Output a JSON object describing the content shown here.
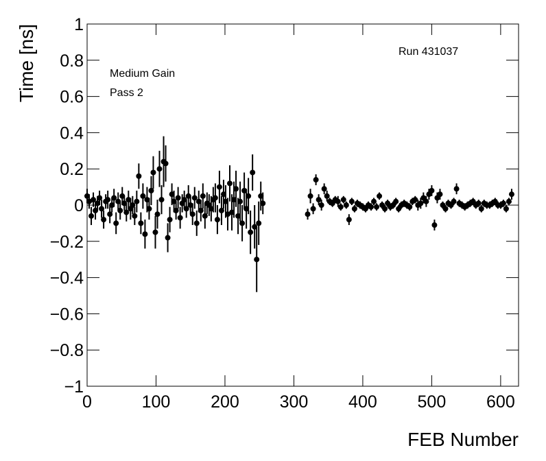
{
  "chart_data": {
    "type": "scatter",
    "x_label": "FEB Number",
    "y_label": "Time [ns]",
    "annotations": [
      "Run 431037",
      "Medium Gain",
      "Pass 2"
    ],
    "xlim": [
      0,
      626
    ],
    "ylim": [
      -1,
      1
    ],
    "xticks": [
      0,
      100,
      200,
      300,
      400,
      500,
      600
    ],
    "yticks": [
      {
        "value": -1,
        "label": "−1"
      },
      {
        "value": -0.8,
        "label": "−0.8"
      },
      {
        "value": -0.6,
        "label": "−0.6"
      },
      {
        "value": -0.4,
        "label": "−0.4"
      },
      {
        "value": -0.2,
        "label": "−0.2"
      },
      0,
      0.2,
      0.4,
      0.6,
      0.8,
      1
    ],
    "series": [
      {
        "color": "#000000",
        "x": [
          0,
          3,
          6,
          9,
          12,
          15,
          18,
          21,
          24,
          27,
          30,
          33,
          36,
          39,
          42,
          45,
          48,
          51,
          54,
          57,
          60,
          63,
          66,
          69,
          72,
          75,
          78,
          81,
          84,
          87,
          90,
          93,
          96,
          99,
          102,
          105,
          108,
          111,
          114,
          117,
          120,
          123,
          126,
          129,
          132,
          135,
          138,
          141,
          144,
          147,
          150,
          153,
          156,
          159,
          162,
          165,
          168,
          171,
          174,
          177,
          180,
          183,
          186,
          189,
          192,
          195,
          198,
          201,
          204,
          207,
          210,
          213,
          216,
          219,
          222,
          225,
          228,
          231,
          234,
          237,
          240,
          243,
          246,
          249,
          252,
          255
        ],
        "values": [
          0.05,
          0.02,
          -0.06,
          0.03,
          -0.03,
          0.01,
          0.04,
          -0.02,
          -0.08,
          0.02,
          0.03,
          -0.05,
          0.0,
          0.04,
          -0.1,
          0.02,
          -0.03,
          0.05,
          0.01,
          -0.04,
          0.03,
          -0.02,
          0.0,
          -0.06,
          0.02,
          0.16,
          -0.1,
          0.05,
          -0.16,
          0.03,
          -0.02,
          0.08,
          0.18,
          -0.15,
          -0.05,
          0.2,
          0.03,
          0.24,
          0.23,
          -0.18,
          -0.08,
          0.06,
          0.02,
          -0.03,
          0.04,
          -0.07,
          0.01,
          0.03,
          -0.02,
          0.05,
          0.0,
          -0.05,
          0.04,
          -0.1,
          0.02,
          -0.03,
          0.05,
          -0.06,
          0.01,
          0.0,
          -0.02,
          0.03,
          0.04,
          -0.08,
          0.1,
          -0.03,
          0.06,
          0.02,
          -0.05,
          0.12,
          -0.04,
          0.03,
          0.09,
          -0.06,
          0.02,
          -0.1,
          0.08,
          -0.02,
          0.05,
          -0.15,
          0.18,
          -0.12,
          -0.3,
          -0.1,
          0.05,
          0.01
        ],
        "errors": [
          0.04,
          0.04,
          0.05,
          0.04,
          0.05,
          0.04,
          0.04,
          0.05,
          0.05,
          0.04,
          0.05,
          0.05,
          0.04,
          0.05,
          0.06,
          0.05,
          0.05,
          0.05,
          0.04,
          0.05,
          0.05,
          0.06,
          0.05,
          0.05,
          0.06,
          0.07,
          0.06,
          0.07,
          0.08,
          0.07,
          0.06,
          0.08,
          0.09,
          0.09,
          0.08,
          0.1,
          0.08,
          0.14,
          0.1,
          0.08,
          0.07,
          0.06,
          0.06,
          0.05,
          0.06,
          0.06,
          0.05,
          0.05,
          0.05,
          0.06,
          0.05,
          0.06,
          0.06,
          0.07,
          0.06,
          0.06,
          0.07,
          0.07,
          0.06,
          0.06,
          0.07,
          0.07,
          0.08,
          0.08,
          0.09,
          0.08,
          0.08,
          0.09,
          0.09,
          0.1,
          0.1,
          0.1,
          0.1,
          0.1,
          0.11,
          0.1,
          0.1,
          0.11,
          0.1,
          0.12,
          0.1,
          0.12,
          0.18,
          0.12,
          0.08,
          0.06
        ]
      },
      {
        "color": "#000000",
        "x": [
          320,
          324,
          328,
          332,
          336,
          340,
          344,
          348,
          352,
          356,
          360,
          364,
          368,
          372,
          376,
          380,
          384,
          388,
          392,
          396,
          400,
          404,
          408,
          412,
          416,
          420,
          424,
          428,
          432,
          436,
          440,
          444,
          448,
          452,
          456,
          460,
          464,
          468,
          472,
          476,
          480,
          484,
          488,
          492,
          496,
          500,
          504,
          508,
          512,
          516,
          520,
          524,
          528,
          532,
          536,
          540,
          544,
          548,
          552,
          556,
          560,
          564,
          568,
          572,
          576,
          580,
          584,
          588,
          592,
          596,
          600,
          604,
          608,
          612,
          616
        ],
        "values": [
          -0.05,
          0.05,
          -0.02,
          0.14,
          0.03,
          0.0,
          0.09,
          0.05,
          0.02,
          0.01,
          0.03,
          0.02,
          -0.01,
          0.03,
          0.0,
          -0.08,
          0.02,
          -0.02,
          0.01,
          0.0,
          -0.01,
          -0.02,
          0.0,
          -0.01,
          0.02,
          -0.01,
          0.05,
          0.0,
          -0.02,
          0.01,
          -0.01,
          0.0,
          0.02,
          -0.02,
          0.0,
          0.01,
          0.0,
          -0.01,
          0.02,
          0.03,
          0.0,
          0.01,
          0.04,
          0.02,
          0.06,
          0.08,
          -0.11,
          0.04,
          0.06,
          0.0,
          -0.02,
          0.01,
          0.0,
          0.02,
          0.09,
          0.01,
          0.0,
          -0.01,
          0.0,
          0.01,
          0.02,
          0.0,
          0.01,
          -0.02,
          0.01,
          0.0,
          0.0,
          0.01,
          0.02,
          0.0,
          0.0,
          0.01,
          -0.02,
          0.02,
          0.06
        ],
        "errors": [
          0.03,
          0.04,
          0.03,
          0.03,
          0.03,
          0.03,
          0.03,
          0.03,
          0.02,
          0.02,
          0.02,
          0.03,
          0.02,
          0.02,
          0.02,
          0.03,
          0.02,
          0.02,
          0.02,
          0.02,
          0.02,
          0.02,
          0.02,
          0.02,
          0.02,
          0.02,
          0.02,
          0.02,
          0.02,
          0.02,
          0.02,
          0.02,
          0.02,
          0.02,
          0.02,
          0.02,
          0.02,
          0.02,
          0.02,
          0.02,
          0.03,
          0.03,
          0.03,
          0.03,
          0.03,
          0.03,
          0.03,
          0.03,
          0.03,
          0.02,
          0.02,
          0.02,
          0.02,
          0.02,
          0.03,
          0.02,
          0.02,
          0.02,
          0.02,
          0.02,
          0.02,
          0.02,
          0.02,
          0.02,
          0.02,
          0.02,
          0.02,
          0.02,
          0.02,
          0.02,
          0.02,
          0.02,
          0.02,
          0.02,
          0.03
        ]
      }
    ]
  }
}
